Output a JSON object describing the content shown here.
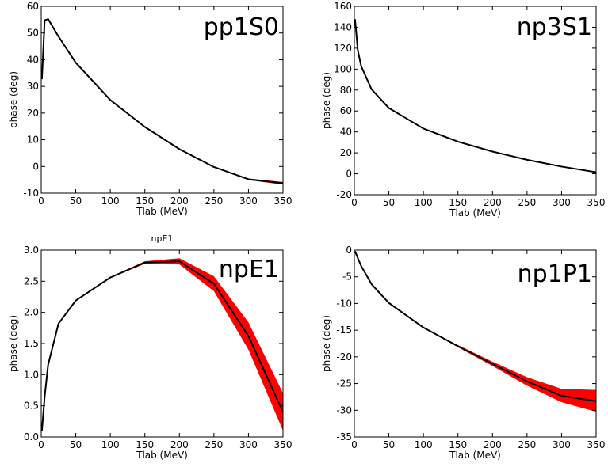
{
  "chart_data": [
    {
      "type": "line",
      "panel_label": "pp1S0",
      "title": "",
      "xlabel": "Tlab (MeV)",
      "ylabel": "phase (deg)",
      "xlim": [
        0,
        350
      ],
      "ylim": [
        -10,
        60
      ],
      "xticks": [
        0,
        50,
        100,
        150,
        200,
        250,
        300,
        350
      ],
      "yticks": [
        -10,
        0,
        10,
        20,
        30,
        40,
        50,
        60
      ],
      "band_color": "#ff0000",
      "line_color": "#000000",
      "x": [
        1,
        5,
        10,
        25,
        50,
        100,
        150,
        200,
        250,
        300,
        350
      ],
      "values": [
        32.7,
        54.8,
        55.2,
        48.7,
        38.9,
        24.9,
        14.8,
        6.5,
        -0.2,
        -4.8,
        -6.3
      ],
      "lower": [
        32.7,
        54.8,
        55.2,
        48.7,
        38.9,
        24.9,
        14.7,
        6.4,
        -0.4,
        -5.1,
        -6.8
      ],
      "upper": [
        32.7,
        54.8,
        55.2,
        48.7,
        38.9,
        24.9,
        14.9,
        6.6,
        0.0,
        -4.5,
        -5.8
      ]
    },
    {
      "type": "line",
      "panel_label": "np3S1",
      "title": "",
      "xlabel": "Tlab (MeV)",
      "ylabel": "phase (deg)",
      "xlim": [
        0,
        350
      ],
      "ylim": [
        -20,
        160
      ],
      "xticks": [
        0,
        50,
        100,
        150,
        200,
        250,
        300,
        350
      ],
      "yticks": [
        -20,
        0,
        20,
        40,
        60,
        80,
        100,
        120,
        140,
        160
      ],
      "band_color": "#ff0000",
      "line_color": "#000000",
      "x": [
        1,
        5,
        10,
        25,
        50,
        100,
        150,
        200,
        250,
        300,
        350
      ],
      "values": [
        147.7,
        118.2,
        102.6,
        80.6,
        62.8,
        43.2,
        30.7,
        21.2,
        13.4,
        6.9,
        1.5
      ],
      "lower": [
        147.7,
        118.2,
        102.6,
        80.6,
        62.8,
        43.2,
        30.7,
        21.2,
        13.4,
        6.8,
        1.3
      ],
      "upper": [
        147.7,
        118.2,
        102.6,
        80.6,
        62.8,
        43.2,
        30.7,
        21.2,
        13.4,
        7.0,
        1.7
      ]
    },
    {
      "type": "line",
      "panel_label": "npE1",
      "title": "npE1",
      "xlabel": "Tlab (MeV)",
      "ylabel": "phase (deg)",
      "xlim": [
        0,
        350
      ],
      "ylim": [
        0.0,
        3.0
      ],
      "xticks": [
        0,
        50,
        100,
        150,
        200,
        250,
        300,
        350
      ],
      "yticks": [
        "0.0",
        "0.5",
        "1.0",
        "1.5",
        "2.0",
        "2.5",
        "3.0"
      ],
      "band_color": "#ff0000",
      "line_color": "#000000",
      "x": [
        1,
        5,
        10,
        25,
        50,
        100,
        150,
        200,
        250,
        300,
        350
      ],
      "values": [
        0.1,
        0.65,
        1.16,
        1.82,
        2.19,
        2.56,
        2.8,
        2.82,
        2.46,
        1.62,
        0.4
      ],
      "lower": [
        0.1,
        0.65,
        1.16,
        1.82,
        2.19,
        2.55,
        2.78,
        2.77,
        2.34,
        1.4,
        0.1
      ],
      "upper": [
        0.1,
        0.65,
        1.16,
        1.82,
        2.19,
        2.57,
        2.82,
        2.87,
        2.58,
        1.84,
        0.7
      ]
    },
    {
      "type": "line",
      "panel_label": "np1P1",
      "title": "",
      "xlabel": "Tlab (MeV)",
      "ylabel": "phase (deg)",
      "xlim": [
        0,
        350
      ],
      "ylim": [
        -35,
        0
      ],
      "xticks": [
        0,
        50,
        100,
        150,
        200,
        250,
        300,
        350
      ],
      "yticks": [
        -35,
        -30,
        -25,
        -20,
        -15,
        -10,
        -5,
        0
      ],
      "band_color": "#ff0000",
      "line_color": "#000000",
      "x": [
        1,
        5,
        10,
        25,
        50,
        100,
        150,
        200,
        250,
        300,
        350
      ],
      "values": [
        -0.2,
        -1.5,
        -3.0,
        -6.4,
        -9.9,
        -14.5,
        -18.0,
        -21.3,
        -24.6,
        -27.3,
        -28.3
      ],
      "lower": [
        -0.2,
        -1.5,
        -3.0,
        -6.4,
        -9.9,
        -14.5,
        -18.2,
        -21.7,
        -25.4,
        -28.5,
        -30.3
      ],
      "upper": [
        -0.2,
        -1.5,
        -3.0,
        -6.4,
        -9.9,
        -14.5,
        -17.8,
        -20.9,
        -23.8,
        -26.0,
        -26.2
      ]
    }
  ]
}
